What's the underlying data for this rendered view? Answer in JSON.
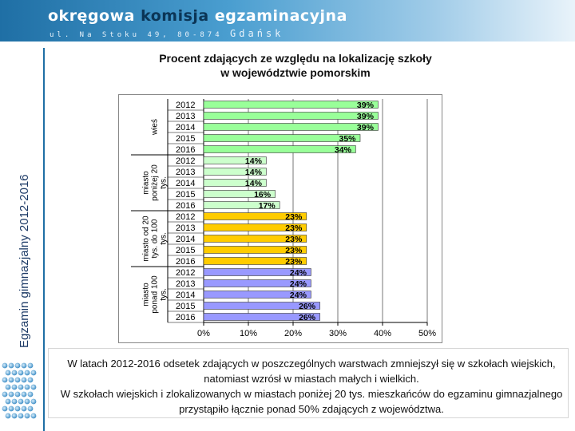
{
  "header": {
    "logo_word1": "okręgowa",
    "logo_word2": "komisja",
    "logo_word3": "egzaminacyjna",
    "logo_address": "ul. Na Stoku 49, 80-874",
    "logo_city": "Gdańsk"
  },
  "title_line1": "Procent zdających ze względu na  lokalizację szkoły",
  "title_line2": "w województwie pomorskim",
  "side_label": "Egzamin gimnazjalny 2012-2016",
  "colors": {
    "wies": "#99ff99",
    "miasto_small": "#ccffcc",
    "miasto_medium": "#ffcc00",
    "miasto_large": "#9999ff"
  },
  "chart_data": {
    "type": "bar",
    "orientation": "horizontal",
    "xlim": [
      0,
      50
    ],
    "x_ticks": [
      "0%",
      "10%",
      "20%",
      "30%",
      "40%",
      "50%"
    ],
    "grid": true,
    "series": [
      {
        "name": "wieś",
        "group_label": [
          "wieś"
        ],
        "categories": [
          "2012",
          "2013",
          "2014",
          "2015",
          "2016"
        ],
        "values": [
          39,
          39,
          39,
          35,
          34
        ],
        "labels": [
          "39%",
          "39%",
          "39%",
          "35%",
          "34%"
        ],
        "color": "#99ff99"
      },
      {
        "name": "miasto poniżej 20 tys.",
        "group_label": [
          "miasto",
          "poniżej 20",
          "tys."
        ],
        "categories": [
          "2012",
          "2013",
          "2014",
          "2015",
          "2016"
        ],
        "values": [
          14,
          14,
          14,
          16,
          17
        ],
        "labels": [
          "14%",
          "14%",
          "14%",
          "16%",
          "17%"
        ],
        "color": "#ccffcc"
      },
      {
        "name": "miasto od 20 tys. do 100 tys.",
        "group_label": [
          "miasto od 20",
          "tys. do 100",
          "tys."
        ],
        "categories": [
          "2012",
          "2013",
          "2014",
          "2015",
          "2016"
        ],
        "values": [
          23,
          23,
          23,
          23,
          23
        ],
        "labels": [
          "23%",
          "23%",
          "23%",
          "23%",
          "23%"
        ],
        "color": "#ffcc00"
      },
      {
        "name": "miasto ponad 100 tys.",
        "group_label": [
          "miasto",
          "ponad 100",
          "tys."
        ],
        "categories": [
          "2012",
          "2013",
          "2014",
          "2015",
          "2016"
        ],
        "values": [
          24,
          24,
          24,
          26,
          26
        ],
        "labels": [
          "24%",
          "24%",
          "24%",
          "26%",
          "26%"
        ],
        "color": "#9999ff"
      }
    ]
  },
  "paragraph1": "W latach 2012-2016 odsetek zdających w poszczególnych warstwach zmniejszył się w szkołach wiejskich, natomiast wzrósł  w miastach małych i wielkich.",
  "paragraph2": "W szkołach wiejskich i zlokalizowanych w miastach poniżej 20 tys. mieszkańców do egzaminu gimnazjalnego przystąpiło łącznie ponad 50%  zdających z województwa."
}
